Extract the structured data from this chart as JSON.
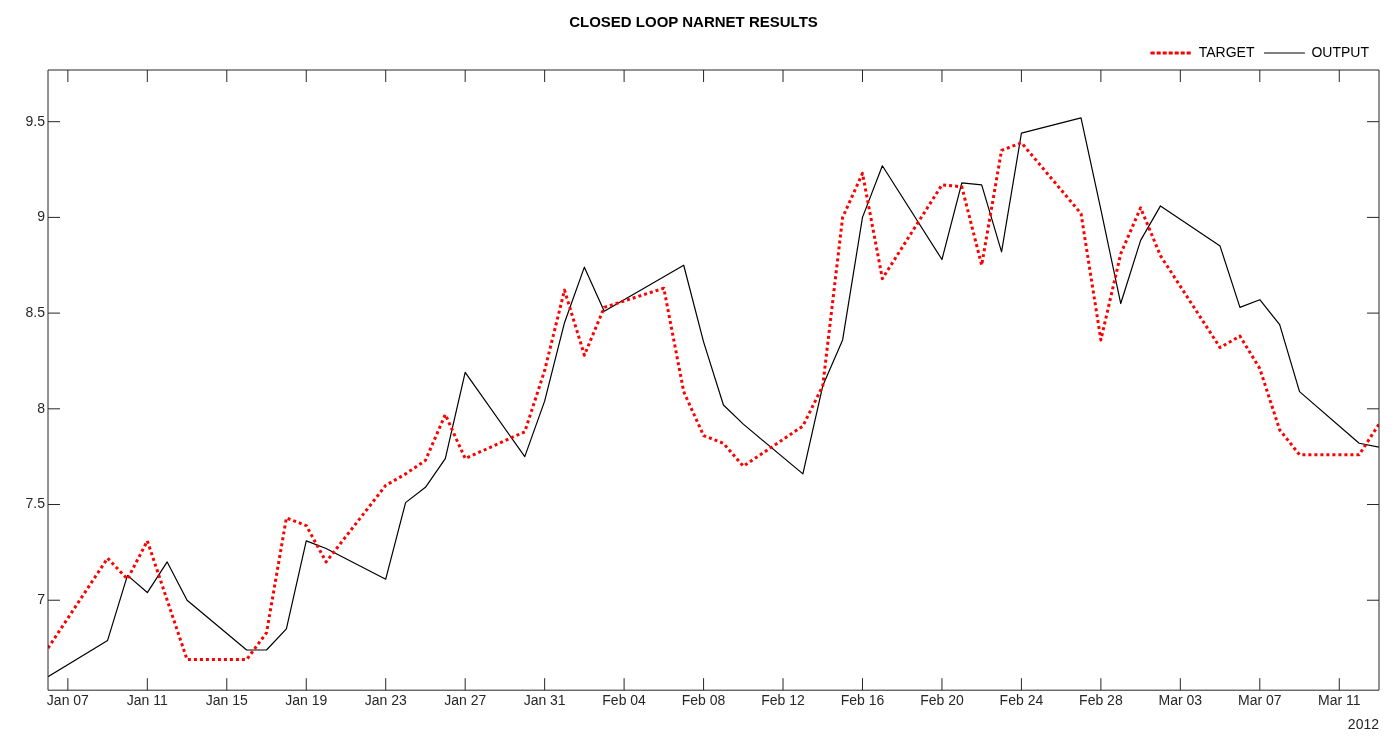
{
  "chart_data": {
    "type": "line",
    "title": "CLOSED LOOP NARNET RESULTS",
    "x": [
      "2012-01-06",
      "2012-01-09",
      "2012-01-10",
      "2012-01-11",
      "2012-01-12",
      "2012-01-13",
      "2012-01-16",
      "2012-01-17",
      "2012-01-18",
      "2012-01-19",
      "2012-01-20",
      "2012-01-23",
      "2012-01-24",
      "2012-01-25",
      "2012-01-26",
      "2012-01-27",
      "2012-01-30",
      "2012-01-31",
      "2012-02-01",
      "2012-02-02",
      "2012-02-03",
      "2012-02-06",
      "2012-02-07",
      "2012-02-08",
      "2012-02-09",
      "2012-02-10",
      "2012-02-13",
      "2012-02-14",
      "2012-02-15",
      "2012-02-16",
      "2012-02-17",
      "2012-02-20",
      "2012-02-21",
      "2012-02-22",
      "2012-02-23",
      "2012-02-24",
      "2012-02-27",
      "2012-02-28",
      "2012-02-29",
      "2012-03-01",
      "2012-03-02",
      "2012-03-05",
      "2012-03-06",
      "2012-03-07",
      "2012-03-08",
      "2012-03-09",
      "2012-03-12",
      "2012-03-13"
    ],
    "series": [
      {
        "name": "TARGET",
        "color": "#ff0000",
        "line_style": "dotted",
        "values": [
          6.75,
          7.22,
          7.11,
          7.31,
          7.0,
          6.69,
          6.69,
          6.83,
          7.43,
          7.39,
          7.2,
          7.6,
          7.66,
          7.73,
          7.97,
          7.74,
          7.88,
          8.2,
          8.62,
          8.28,
          8.53,
          8.63,
          8.09,
          7.86,
          7.82,
          7.7,
          7.91,
          8.12,
          9.0,
          9.23,
          8.68,
          9.17,
          9.16,
          8.75,
          9.35,
          9.39,
          9.02,
          8.36,
          8.81,
          9.05,
          8.8,
          8.32,
          8.38,
          8.21,
          7.89,
          7.76,
          7.76,
          7.92
        ]
      },
      {
        "name": "OUTPUT",
        "color": "#000000",
        "line_style": "solid",
        "values": [
          6.6,
          6.79,
          7.13,
          7.04,
          7.2,
          7.0,
          6.74,
          6.74,
          6.85,
          7.31,
          7.27,
          7.11,
          7.51,
          7.59,
          7.74,
          8.19,
          7.75,
          8.04,
          8.45,
          8.74,
          8.51,
          8.69,
          8.75,
          8.35,
          8.02,
          7.92,
          7.66,
          8.12,
          8.36,
          9.0,
          9.27,
          8.78,
          9.18,
          9.17,
          8.82,
          9.44,
          9.52,
          9.04,
          8.55,
          8.88,
          9.06,
          8.85,
          8.53,
          8.57,
          8.44,
          8.09,
          7.82,
          7.8
        ]
      }
    ],
    "xlim": [
      "2012-01-06",
      "2012-03-13"
    ],
    "xticks": [
      {
        "value": "2012-01-07",
        "label": "Jan 07"
      },
      {
        "value": "2012-01-11",
        "label": "Jan 11"
      },
      {
        "value": "2012-01-15",
        "label": "Jan 15"
      },
      {
        "value": "2012-01-19",
        "label": "Jan 19"
      },
      {
        "value": "2012-01-23",
        "label": "Jan 23"
      },
      {
        "value": "2012-01-27",
        "label": "Jan 27"
      },
      {
        "value": "2012-01-31",
        "label": "Jan 31"
      },
      {
        "value": "2012-02-04",
        "label": "Feb 04"
      },
      {
        "value": "2012-02-08",
        "label": "Feb 08"
      },
      {
        "value": "2012-02-12",
        "label": "Feb 12"
      },
      {
        "value": "2012-02-16",
        "label": "Feb 16"
      },
      {
        "value": "2012-02-20",
        "label": "Feb 20"
      },
      {
        "value": "2012-02-24",
        "label": "Feb 24"
      },
      {
        "value": "2012-02-28",
        "label": "Feb 28"
      },
      {
        "value": "2012-03-03",
        "label": "Mar 03"
      },
      {
        "value": "2012-03-07",
        "label": "Mar 07"
      },
      {
        "value": "2012-03-11",
        "label": "Mar 11"
      }
    ],
    "ylim": [
      6.53,
      9.77
    ],
    "yticks": [
      7,
      7.5,
      8,
      8.5,
      9,
      9.5
    ],
    "grid": false,
    "legend": "top right",
    "marker": "none",
    "annotations": [
      "2012"
    ]
  }
}
